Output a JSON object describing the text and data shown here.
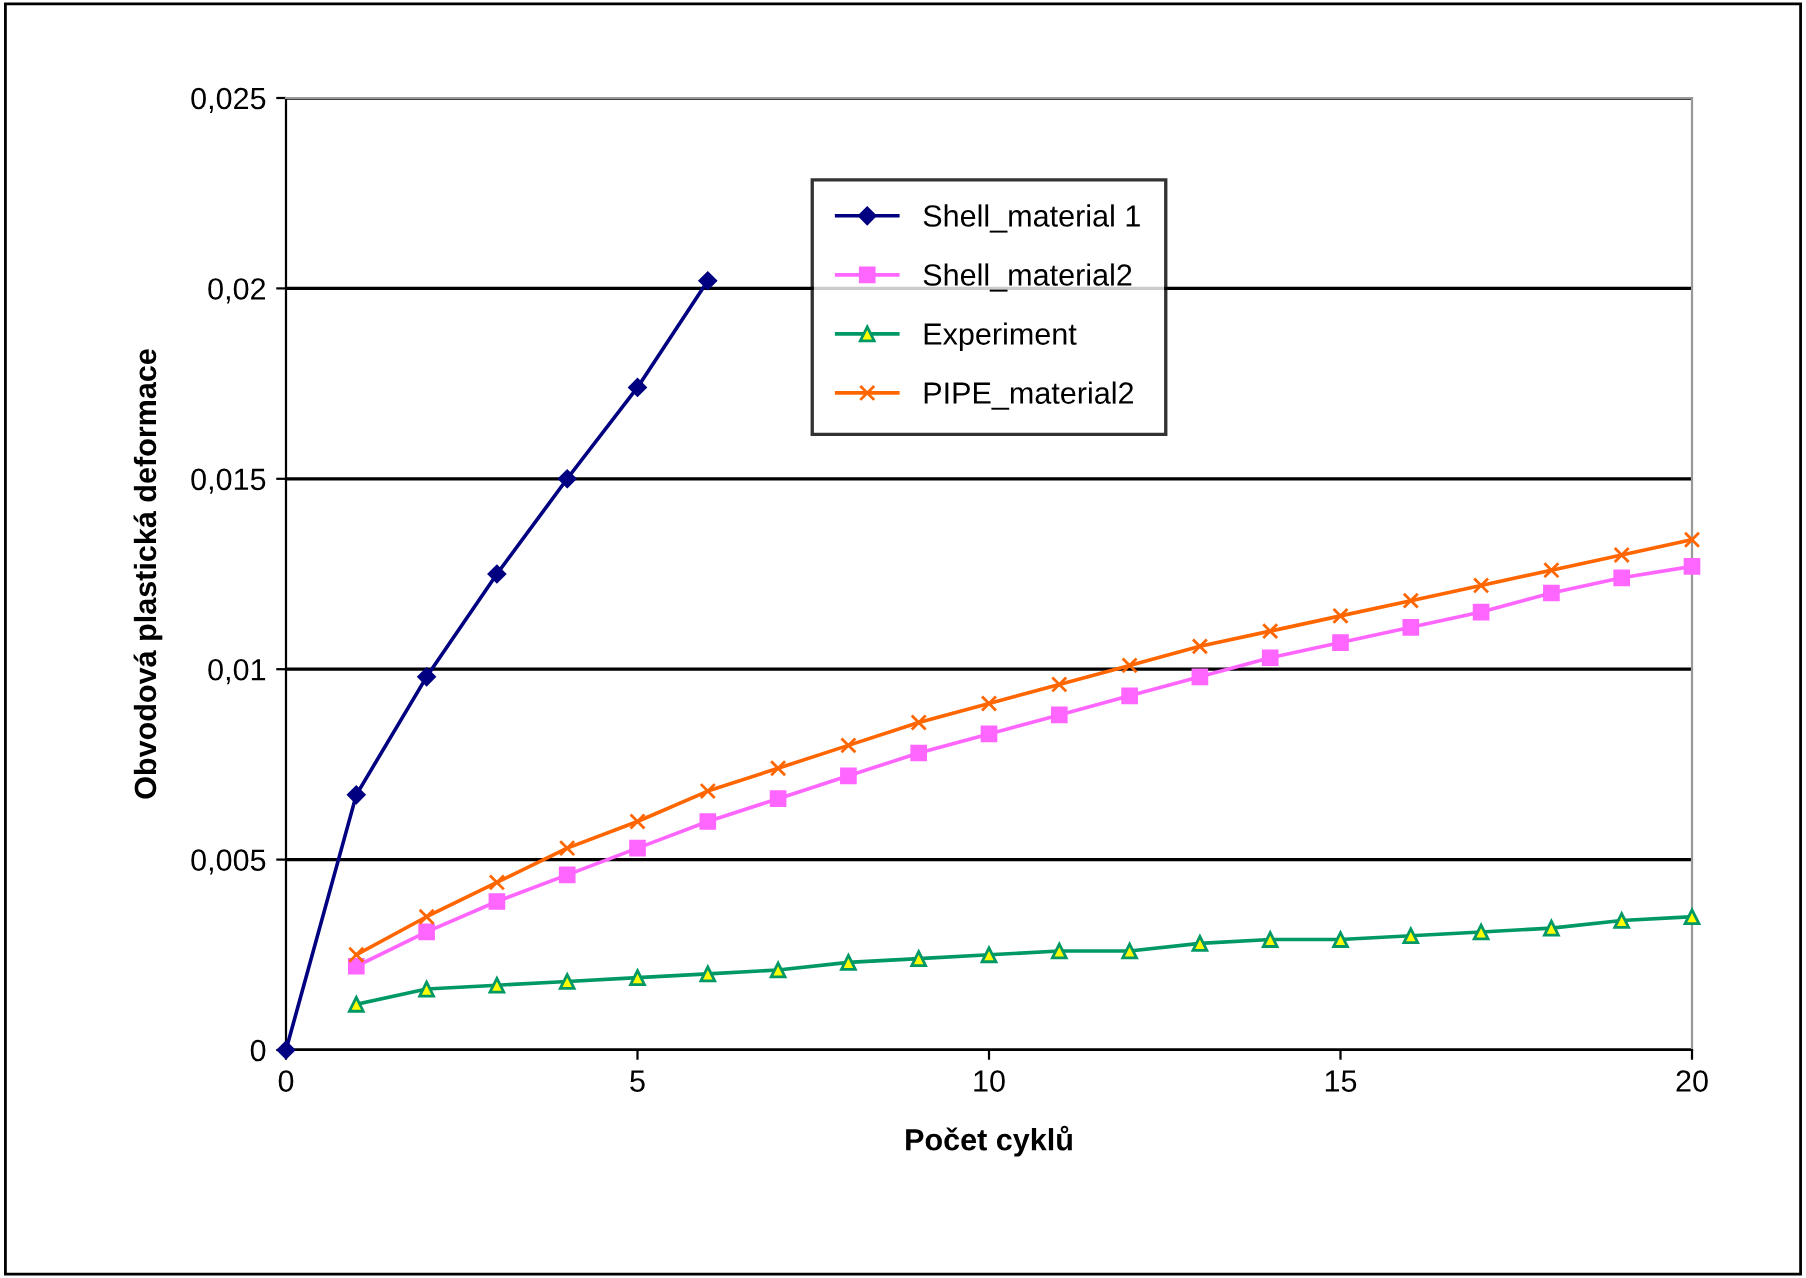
{
  "chart_data": {
    "type": "line",
    "xlabel": "Počet cyklů",
    "ylabel": "Obvodová plastická deformace",
    "xlim": [
      0,
      20
    ],
    "xticks": [
      0,
      5,
      10,
      15,
      20
    ],
    "ylim": [
      0,
      0.025
    ],
    "yticks": [
      {
        "value": 0,
        "label": "0"
      },
      {
        "value": 0.005,
        "label": "0,005"
      },
      {
        "value": 0.01,
        "label": "0,01"
      },
      {
        "value": 0.015,
        "label": "0,015"
      },
      {
        "value": 0.02,
        "label": "0,02"
      },
      {
        "value": 0.025,
        "label": "0,025"
      }
    ],
    "grid": "y",
    "legend": "top",
    "line_style": "solid",
    "series": [
      {
        "name": "Shell_material 1",
        "color": "#000080",
        "marker": "diamond",
        "x": [
          0,
          1,
          2,
          3,
          4,
          5,
          6
        ],
        "values": [
          0,
          0.0067,
          0.0098,
          0.0125,
          0.015,
          0.0174,
          0.0202
        ]
      },
      {
        "name": "Shell_material2",
        "color": "#ff66ff",
        "marker": "square",
        "x": [
          1,
          2,
          3,
          4,
          5,
          6,
          7,
          8,
          9,
          10,
          11,
          12,
          13,
          14,
          15,
          16,
          17,
          18,
          19,
          20
        ],
        "values": [
          0.0022,
          0.0031,
          0.0039,
          0.0046,
          0.0053,
          0.006,
          0.0066,
          0.0072,
          0.0078,
          0.0083,
          0.0088,
          0.0093,
          0.0098,
          0.0103,
          0.0107,
          0.0111,
          0.0115,
          0.012,
          0.0124,
          0.0127
        ]
      },
      {
        "name": "Experiment",
        "color": "#009966",
        "marker": "triangle",
        "x": [
          1,
          2,
          3,
          4,
          5,
          6,
          7,
          8,
          9,
          10,
          11,
          12,
          13,
          14,
          15,
          16,
          17,
          18,
          19,
          20
        ],
        "values": [
          0.0012,
          0.0016,
          0.0017,
          0.0018,
          0.0019,
          0.002,
          0.0021,
          0.0023,
          0.0024,
          0.0025,
          0.0026,
          0.0026,
          0.0028,
          0.0029,
          0.0029,
          0.003,
          0.0031,
          0.0032,
          0.0034,
          0.0035
        ]
      },
      {
        "name": "PIPE_material2",
        "color": "#ff6600",
        "marker": "cross",
        "x": [
          1,
          2,
          3,
          4,
          5,
          6,
          7,
          8,
          9,
          10,
          11,
          12,
          13,
          14,
          15,
          16,
          17,
          18,
          19,
          20
        ],
        "values": [
          0.0025,
          0.0035,
          0.0044,
          0.0053,
          0.006,
          0.0068,
          0.0074,
          0.008,
          0.0086,
          0.0091,
          0.0096,
          0.0101,
          0.0106,
          0.011,
          0.0114,
          0.0118,
          0.0122,
          0.0126,
          0.013,
          0.0134
        ]
      }
    ]
  }
}
